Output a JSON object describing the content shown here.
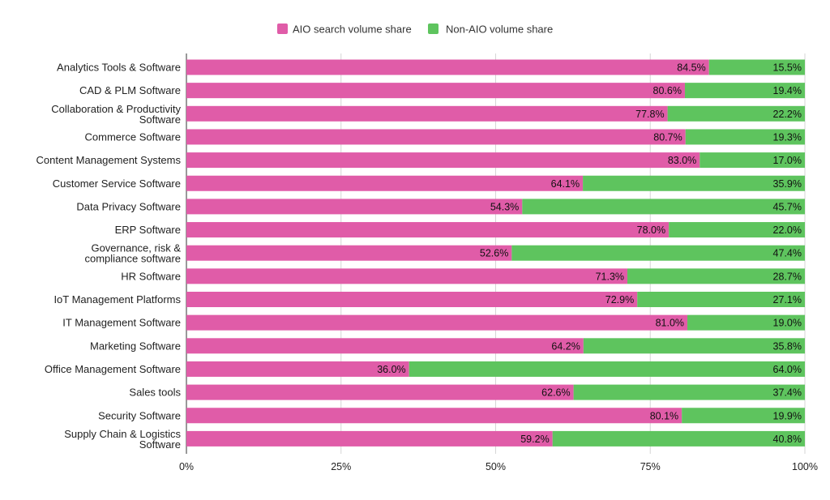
{
  "chart_data": {
    "type": "bar",
    "stacked": true,
    "orientation": "horizontal",
    "percent_stacked": true,
    "categories": [
      "Analytics Tools & Software",
      "CAD & PLM Software",
      "Collaboration & Productivity Software",
      "Commerce Software",
      "Content Management Systems",
      "Customer Service Software",
      "Data Privacy Software",
      "ERP Software",
      "Governance, risk & compliance software",
      "HR Software",
      "IoT Management Platforms",
      "IT Management Software",
      "Marketing Software",
      "Office Management Software",
      "Sales tools",
      "Security Software",
      "Supply Chain & Logistics Software"
    ],
    "series": [
      {
        "name": "AIO search volume share",
        "color": "#e05ca8",
        "values": [
          84.5,
          80.6,
          77.8,
          80.7,
          83.0,
          64.1,
          54.3,
          78.0,
          52.6,
          71.3,
          72.9,
          81.0,
          64.2,
          36.0,
          62.6,
          80.1,
          59.2
        ],
        "labels": [
          "84.5%",
          "80.6%",
          "77.8%",
          "80.7%",
          "83.0%",
          "64.1%",
          "54.3%",
          "78.0%",
          "52.6%",
          "71.3%",
          "72.9%",
          "81.0%",
          "64.2%",
          "36.0%",
          "62.6%",
          "80.1%",
          "59.2%"
        ]
      },
      {
        "name": "Non-AIO volume share",
        "color": "#5ec45e",
        "values": [
          15.5,
          19.4,
          22.2,
          19.3,
          17.0,
          35.9,
          45.7,
          22.0,
          47.4,
          28.7,
          27.1,
          19.0,
          35.8,
          64.0,
          37.4,
          19.9,
          40.8
        ],
        "labels": [
          "15.5%",
          "19.4%",
          "22.2%",
          "19.3%",
          "17.0%",
          "35.9%",
          "45.7%",
          "22.0%",
          "47.4%",
          "28.7%",
          "27.1%",
          "19.0%",
          "35.8%",
          "64.0%",
          "37.4%",
          "19.9%",
          "40.8%"
        ]
      }
    ],
    "x_ticks": [
      "0%",
      "25%",
      "50%",
      "75%",
      "100%"
    ],
    "xlim": [
      0,
      100
    ],
    "grid": true,
    "legend_position": "top-center"
  }
}
